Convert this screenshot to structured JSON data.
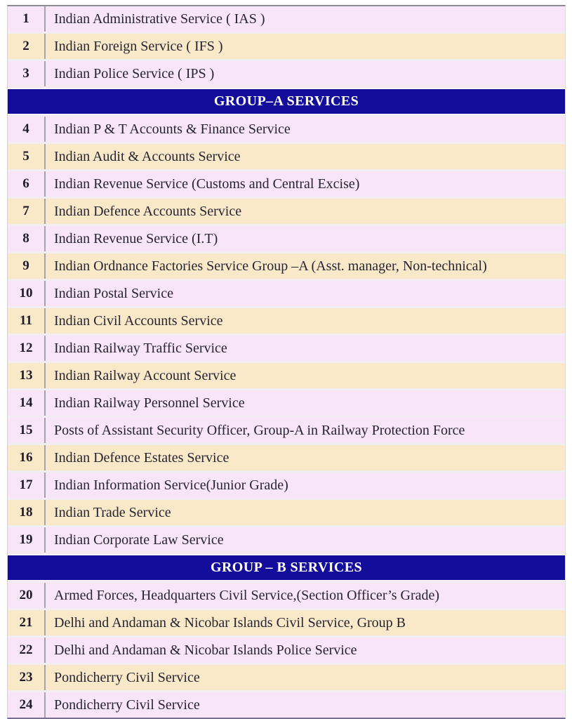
{
  "colors": {
    "row_pink": "#f8e5f8",
    "row_cream": "#fae9c8",
    "section_navy": "#140c9b",
    "section_text": "#ffffff",
    "body_text": "#262433",
    "number_text": "#1e1c29",
    "divider_gray": "#a9a2aa"
  },
  "table": {
    "rows": [
      {
        "type": "item",
        "num": "1",
        "label": "Indian Administrative Service ( IAS )",
        "tone": "pink"
      },
      {
        "type": "item",
        "num": "2",
        "label": "Indian Foreign Service ( IFS )",
        "tone": "cream"
      },
      {
        "type": "item",
        "num": "3",
        "label": "Indian Police Service ( IPS )",
        "tone": "pink"
      },
      {
        "type": "section",
        "label": "GROUP–A SERVICES"
      },
      {
        "type": "item",
        "num": "4",
        "label": "Indian P & T Accounts & Finance Service",
        "tone": "pink"
      },
      {
        "type": "item",
        "num": "5",
        "label": "Indian Audit & Accounts Service",
        "tone": "cream"
      },
      {
        "type": "item",
        "num": "6",
        "label": "Indian Revenue Service (Customs and Central Excise)",
        "tone": "pink"
      },
      {
        "type": "item",
        "num": "7",
        "label": "Indian Defence Accounts Service",
        "tone": "cream"
      },
      {
        "type": "item",
        "num": "8",
        "label": "Indian Revenue Service (I.T)",
        "tone": "pink"
      },
      {
        "type": "item",
        "num": "9",
        "label": "Indian Ordnance Factories Service Group –A (Asst. manager, Non-technical)",
        "tone": "cream"
      },
      {
        "type": "item",
        "num": "10",
        "label": "Indian Postal Service",
        "tone": "pink"
      },
      {
        "type": "item",
        "num": "11",
        "label": "Indian Civil Accounts Service",
        "tone": "cream"
      },
      {
        "type": "item",
        "num": "12",
        "label": "Indian Railway Traffic Service",
        "tone": "pink"
      },
      {
        "type": "item",
        "num": "13",
        "label": "Indian Railway Account Service",
        "tone": "cream"
      },
      {
        "type": "item",
        "num": "14",
        "label": "Indian Railway Personnel Service",
        "tone": "pink"
      },
      {
        "type": "item",
        "num": "15",
        "label": "Posts of Assistant Security Officer, Group-A in Railway Protection Force",
        "tone": "pink"
      },
      {
        "type": "item",
        "num": "16",
        "label": "Indian Defence Estates Service",
        "tone": "cream"
      },
      {
        "type": "item",
        "num": "17",
        "label": "Indian Information Service(Junior Grade)",
        "tone": "pink"
      },
      {
        "type": "item",
        "num": "18",
        "label": "Indian Trade Service",
        "tone": "cream"
      },
      {
        "type": "item",
        "num": "19",
        "label": "Indian Corporate Law Service",
        "tone": "pink"
      },
      {
        "type": "section",
        "label": "GROUP – B SERVICES"
      },
      {
        "type": "item",
        "num": "20",
        "label": "Armed Forces, Headquarters Civil Service,(Section Officer’s Grade)",
        "tone": "pink"
      },
      {
        "type": "item",
        "num": "21",
        "label": "Delhi and Andaman & Nicobar Islands Civil Service, Group B",
        "tone": "cream"
      },
      {
        "type": "item",
        "num": "22",
        "label": "Delhi and Andaman & Nicobar Islands Police Service",
        "tone": "pink"
      },
      {
        "type": "item",
        "num": "23",
        "label": "Pondicherry Civil Service",
        "tone": "cream"
      },
      {
        "type": "item",
        "num": "24",
        "label": "Pondicherry Civil Service",
        "tone": "pink"
      }
    ]
  }
}
